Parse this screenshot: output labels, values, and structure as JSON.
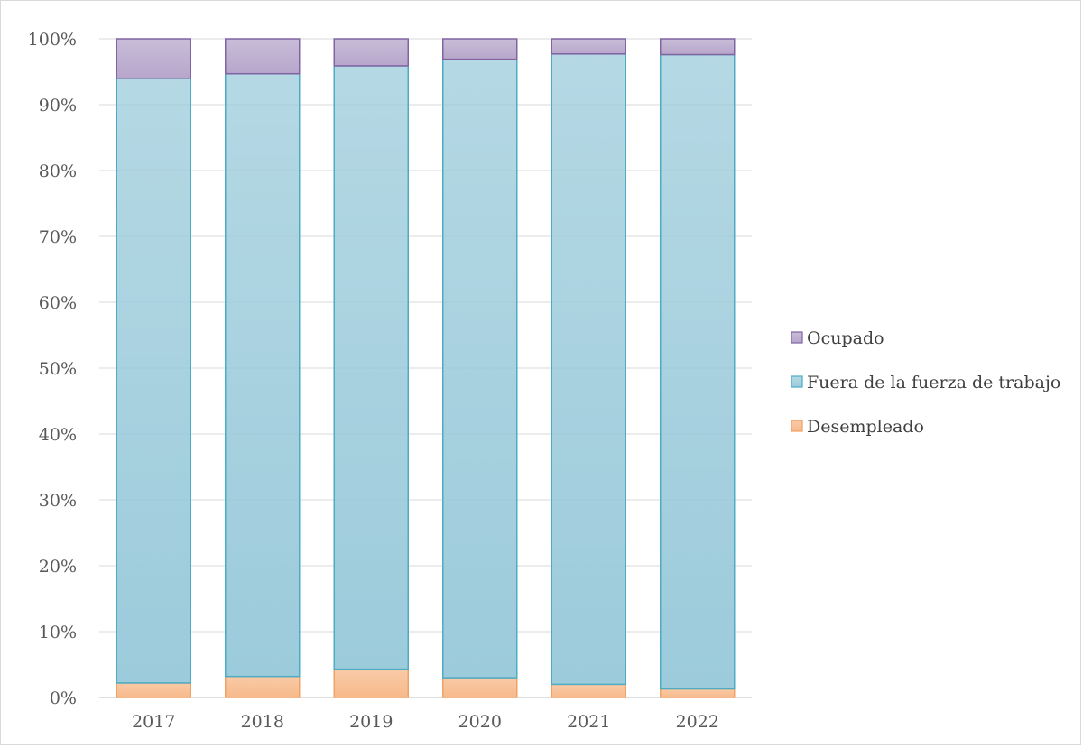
{
  "chart_data": {
    "type": "bar",
    "stacked": true,
    "percent_stacked": true,
    "categories": [
      "2017",
      "2018",
      "2019",
      "2020",
      "2021",
      "2022"
    ],
    "series": [
      {
        "name": "Desempleado",
        "values": [
          2.2,
          3.2,
          4.3,
          3.0,
          2.0,
          1.3
        ],
        "color": "#f7b98a",
        "edge": "#f0a165"
      },
      {
        "name": "Fuera de la fuerza de trabajo",
        "values": [
          91.8,
          91.5,
          91.6,
          93.9,
          95.7,
          96.3
        ],
        "color": "#9ccbdb",
        "edge": "#4bacc6"
      },
      {
        "name": "Ocupado",
        "values": [
          6.0,
          5.3,
          4.1,
          3.1,
          2.3,
          2.4
        ],
        "color": "#b7a6cb",
        "edge": "#8064a2"
      }
    ],
    "ylim": [
      0,
      100
    ],
    "yticks": [
      "0%",
      "10%",
      "20%",
      "30%",
      "40%",
      "50%",
      "60%",
      "70%",
      "80%",
      "90%",
      "100%"
    ],
    "grid": true,
    "legend_position": "right",
    "legend_order": [
      "Ocupado",
      "Fuera de la fuerza de trabajo",
      "Desempleado"
    ]
  }
}
